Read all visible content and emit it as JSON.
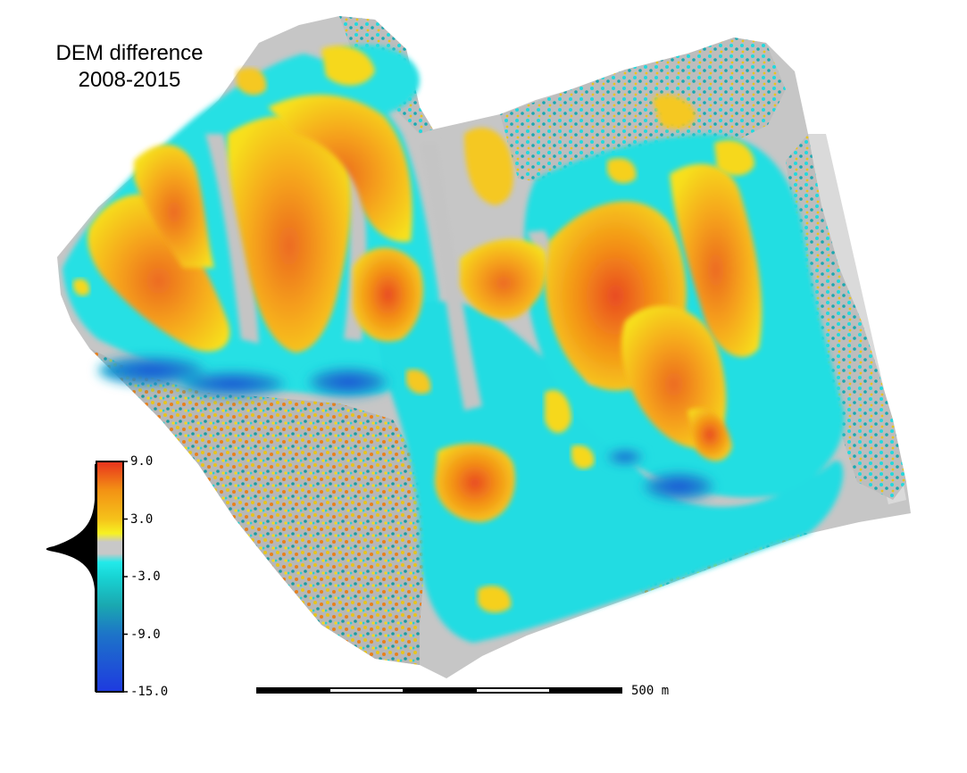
{
  "title": {
    "line1": "DEM difference",
    "line2": "2008-2015"
  },
  "colorbar": {
    "ticks": [
      "9.0",
      "3.0",
      "-3.0",
      "-9.0",
      "-15.0"
    ],
    "tick_values": [
      9,
      3,
      -3,
      -9,
      -15
    ],
    "range": [
      -15,
      9
    ],
    "stops": [
      {
        "value": 9,
        "color": "#e8321e"
      },
      {
        "value": 6,
        "color": "#f39214"
      },
      {
        "value": 3,
        "color": "#f5c21a"
      },
      {
        "value": 1.5,
        "color": "#f7f222"
      },
      {
        "value": 0.6,
        "color": "#c8c8c8"
      },
      {
        "value": -0.6,
        "color": "#c8c8c8"
      },
      {
        "value": -1.5,
        "color": "#22eaea"
      },
      {
        "value": -3,
        "color": "#18d4d4"
      },
      {
        "value": -6,
        "color": "#1aa8b0"
      },
      {
        "value": -9,
        "color": "#1d74c8"
      },
      {
        "value": -15,
        "color": "#1e3ae0"
      }
    ]
  },
  "scale_bar": {
    "label": "500 m"
  },
  "colors": {
    "gray": "#c6c6c6",
    "cyan": "#26e3e6",
    "cyan_dark": "#14b5c0",
    "yellow": "#f7ee1c",
    "orange": "#f59a17",
    "red": "#ec5a22",
    "blue": "#1f62d8",
    "speckle_yellow": "#e8c41c",
    "speckle_orange": "#e8801c",
    "speckle_teal": "#1a9aa0"
  }
}
